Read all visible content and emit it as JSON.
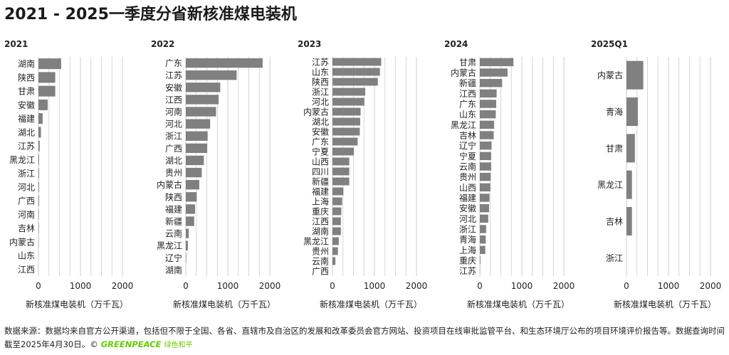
{
  "title": "2021 - 2025一季度分省新核准煤电装机",
  "footer": {
    "source_text": "数据来源：数据均来自官方公开渠道，包括但不限于全国、各省、直辖市及自治区的发展和改革委员会官方网站、投资项目在线审批监管平台、和生态环境厅公布的项目环境评价报告等。数据查询时间截至2025年4月30日。©",
    "logo_text": "GREENPEACE",
    "logo_cn": "绿色和平"
  },
  "colors": {
    "bar": "#808080",
    "grid": "#cccccc",
    "text": "#222222",
    "logo": "#66cc00"
  },
  "chart_data": [
    {
      "type": "bar",
      "orientation": "horizontal",
      "title": "2021",
      "xlabel": "新核准煤电装机（万千瓦）",
      "xlim": [
        0,
        2000
      ],
      "xticks": [
        0,
        1000,
        2000
      ],
      "categories": [
        "湖南",
        "陕西",
        "甘肃",
        "安徽",
        "福建",
        "湖北",
        "江苏",
        "黑龙江",
        "浙江",
        "河北",
        "广西",
        "河南",
        "吉林",
        "内蒙古",
        "山东",
        "江西"
      ],
      "values": [
        540,
        400,
        400,
        220,
        100,
        60,
        30,
        15,
        15,
        15,
        15,
        10,
        10,
        5,
        0,
        0
      ]
    },
    {
      "type": "bar",
      "orientation": "horizontal",
      "title": "2022",
      "xlabel": "新核准煤电装机（万千瓦）",
      "xlim": [
        0,
        2000
      ],
      "xticks": [
        0,
        1000,
        2000
      ],
      "categories": [
        "广东",
        "江苏",
        "安徽",
        "江西",
        "河南",
        "河北",
        "浙江",
        "广西",
        "湖北",
        "贵州",
        "内蒙古",
        "陕西",
        "福建",
        "新疆",
        "云南",
        "黑龙江",
        "辽宁",
        "湖南"
      ],
      "values": [
        1830,
        1210,
        820,
        780,
        720,
        580,
        520,
        510,
        430,
        380,
        320,
        260,
        220,
        200,
        70,
        50,
        10,
        0
      ]
    },
    {
      "type": "bar",
      "orientation": "horizontal",
      "title": "2023",
      "xlabel": "新核准煤电装机（万千瓦）",
      "xlim": [
        0,
        2000
      ],
      "xticks": [
        0,
        1000,
        2000
      ],
      "categories": [
        "江苏",
        "山东",
        "陕西",
        "浙江",
        "河北",
        "内蒙古",
        "湖北",
        "安徽",
        "广东",
        "宁夏",
        "山西",
        "四川",
        "新疆",
        "福建",
        "上海",
        "重庆",
        "江西",
        "湖南",
        "黑龙江",
        "贵州",
        "云南",
        "广西"
      ],
      "values": [
        1160,
        1130,
        1080,
        780,
        760,
        670,
        660,
        650,
        600,
        510,
        400,
        400,
        400,
        260,
        230,
        210,
        200,
        200,
        150,
        130,
        70,
        0
      ]
    },
    {
      "type": "bar",
      "orientation": "horizontal",
      "title": "2024",
      "xlabel": "新核准煤电装机（万千瓦）",
      "xlim": [
        0,
        2000
      ],
      "xticks": [
        0,
        1000,
        2000
      ],
      "categories": [
        "甘肃",
        "内蒙古",
        "新疆",
        "江西",
        "广东",
        "山东",
        "黑龙江",
        "吉林",
        "辽宁",
        "宁夏",
        "云南",
        "贵州",
        "山西",
        "福建",
        "安徽",
        "河北",
        "浙江",
        "青海",
        "上海",
        "重庆",
        "江苏"
      ],
      "values": [
        800,
        660,
        530,
        400,
        390,
        380,
        340,
        330,
        280,
        270,
        270,
        260,
        250,
        230,
        220,
        200,
        150,
        140,
        130,
        15,
        5
      ]
    },
    {
      "type": "bar",
      "orientation": "horizontal",
      "title": "2025Q1",
      "xlabel": "新核准煤电装机（万千瓦）",
      "xlim": [
        0,
        2000
      ],
      "xticks": [
        0,
        1000,
        2000
      ],
      "categories": [
        "内蒙古",
        "青海",
        "甘肃",
        "黑龙江",
        "吉林",
        "浙江"
      ],
      "values": [
        400,
        270,
        200,
        130,
        130,
        0
      ]
    }
  ]
}
